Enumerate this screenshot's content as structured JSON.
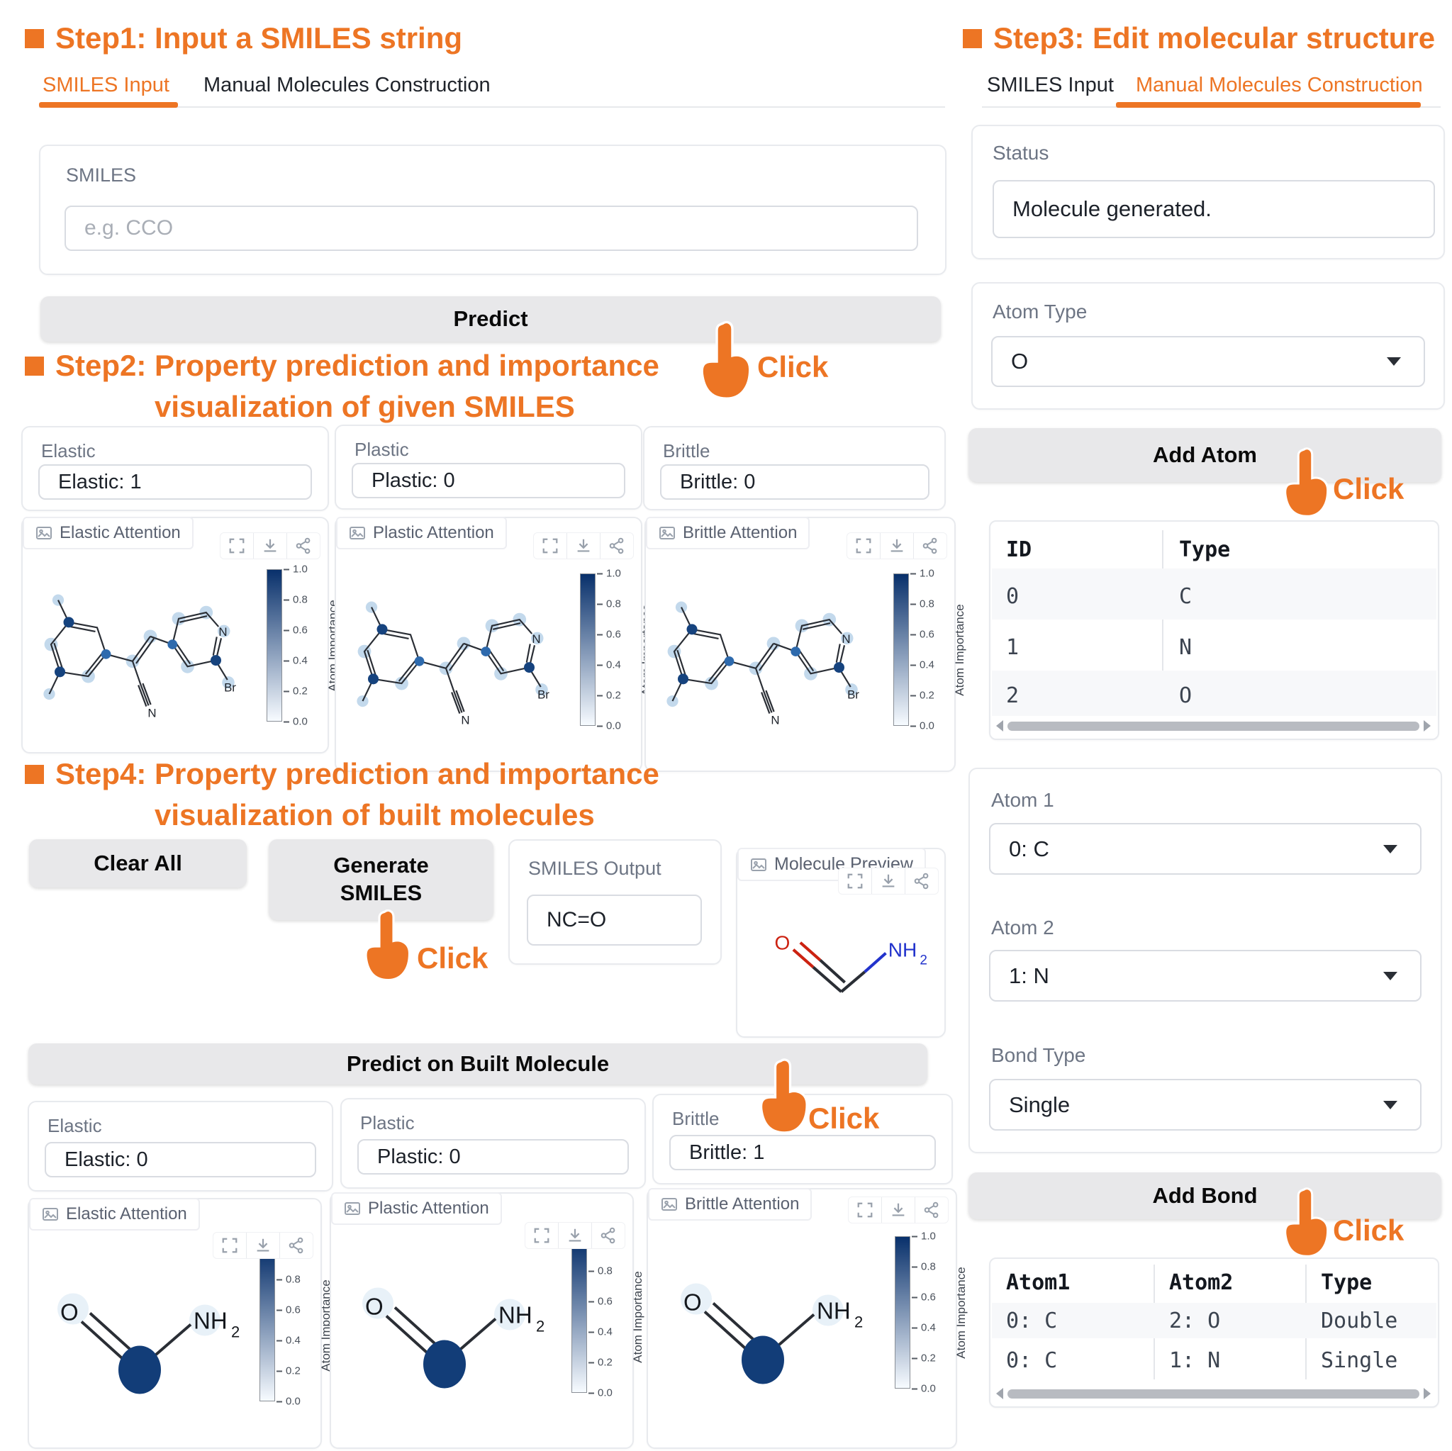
{
  "accent_orange": "#ED7524",
  "click_label": "Click",
  "step1": {
    "title": "Step1: Input a SMILES string"
  },
  "tabs_left": {
    "tab1": "SMILES Input",
    "tab2": "Manual Molecules Construction"
  },
  "smiles_card": {
    "label": "SMILES",
    "placeholder": "e.g. CCO"
  },
  "predict_button": "Predict",
  "step2": {
    "line1": "Step2: Property prediction and importance",
    "line2": "visualization of given SMILES"
  },
  "step2_props": [
    {
      "label": "Elastic",
      "value": "Elastic: 1"
    },
    {
      "label": "Plastic",
      "value": "Plastic: 0"
    },
    {
      "label": "Brittle",
      "value": "Brittle: 0"
    }
  ],
  "attention_titles": [
    "Elastic Attention",
    "Plastic Attention",
    "Brittle Attention"
  ],
  "colorbar": {
    "label": "Atom Importance",
    "ticks": [
      "1.0",
      "0.8",
      "0.6",
      "0.4",
      "0.2",
      "0.0"
    ]
  },
  "mol_ring": {
    "n_ring": "N",
    "n_nitrile": "N",
    "br": "Br"
  },
  "mol_formamide": {
    "o": "O",
    "nh": "NH",
    "sub": "2"
  },
  "step4": {
    "line1": "Step4: Property prediction and importance",
    "line2": "visualization of built molecules"
  },
  "clear_all_button": "Clear All",
  "generate_smiles_button": {
    "line1": "Generate",
    "line2": "SMILES"
  },
  "smiles_output": {
    "label": "SMILES Output",
    "value": "NC=O"
  },
  "molecule_preview": {
    "title": "Molecule Preview"
  },
  "predict_built_button": "Predict on Built Molecule",
  "step4_props": [
    {
      "label": "Elastic",
      "value": "Elastic: 0"
    },
    {
      "label": "Plastic",
      "value": "Plastic: 0"
    },
    {
      "label": "Brittle",
      "value": "Brittle: 1"
    }
  ],
  "step3": {
    "title": "Step3: Edit molecular structure"
  },
  "tabs_right": {
    "tab1": "SMILES Input",
    "tab2": "Manual Molecules Construction"
  },
  "status_card": {
    "label": "Status",
    "value": "Molecule generated."
  },
  "atom_type_card": {
    "label": "Atom Type",
    "value": "O"
  },
  "add_atom_button": "Add Atom",
  "atom_table": {
    "headers": [
      "ID",
      "Type"
    ],
    "rows": [
      [
        "0",
        "C"
      ],
      [
        "1",
        "N"
      ],
      [
        "2",
        "O"
      ]
    ]
  },
  "bond_card": {
    "atom1_label": "Atom 1",
    "atom1_value": "0: C",
    "atom2_label": "Atom 2",
    "atom2_value": "1: N",
    "bond_type_label": "Bond Type",
    "bond_type_value": "Single"
  },
  "add_bond_button": "Add Bond",
  "bond_table": {
    "headers": [
      "Atom1",
      "Atom2",
      "Type"
    ],
    "rows": [
      [
        "0: C",
        "2: O",
        "Double"
      ],
      [
        "0: C",
        "1: N",
        "Single"
      ]
    ]
  }
}
